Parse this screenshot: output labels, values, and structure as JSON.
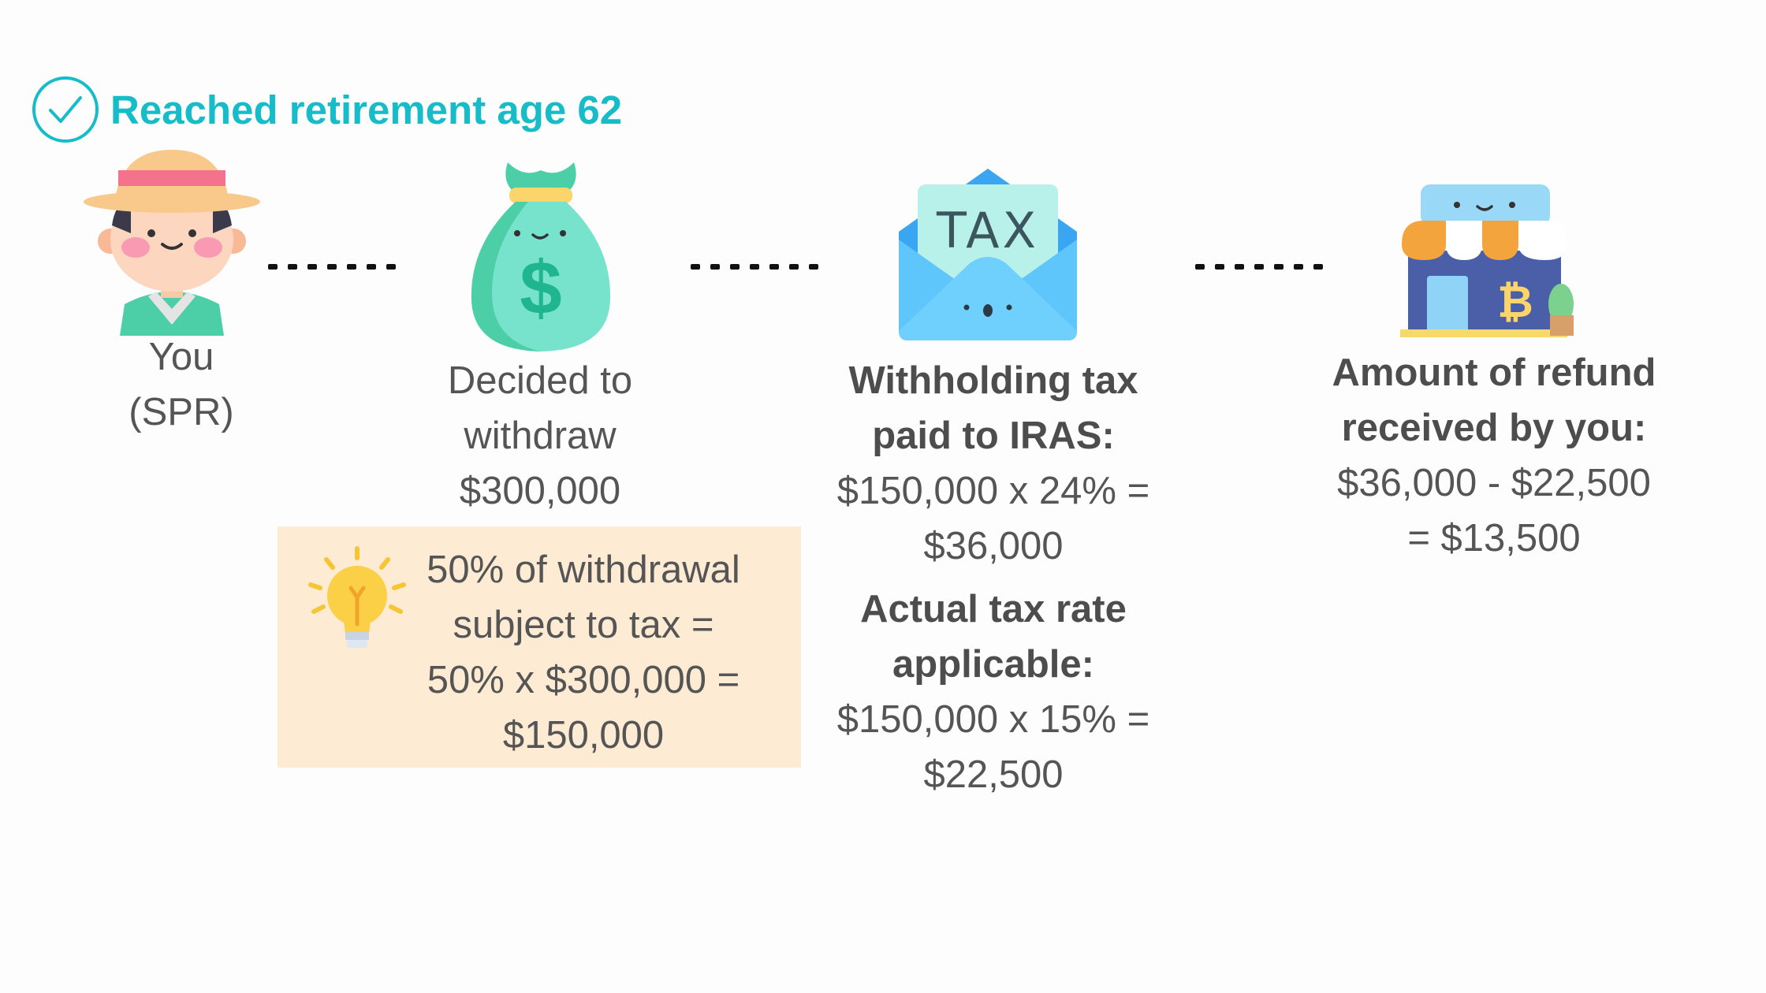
{
  "header": {
    "title": "Reached retirement age 62",
    "icon": "check-circle-icon"
  },
  "steps": [
    {
      "icon": "person-with-hat-icon",
      "line1": "You",
      "line2": "(SPR)"
    },
    {
      "icon": "money-bag-icon",
      "line1": "Decided to",
      "line2": "withdraw",
      "line3": "$300,000"
    },
    {
      "icon": "tax-envelope-icon",
      "heading1": "Withholding tax",
      "heading2": "paid to IRAS:",
      "calc1": "$150,000 x 24% =",
      "calc2": "$36,000",
      "heading3": "Actual tax rate",
      "heading4": "applicable:",
      "calc3": "$150,000 x 15% =",
      "calc4": "$22,500"
    },
    {
      "icon": "shop-icon",
      "heading1": "Amount of refund",
      "heading2": "received by you:",
      "calc1": "$36,000 - $22,500",
      "calc2": "= $13,500"
    }
  ],
  "tip": {
    "icon": "lightbulb-icon",
    "line1": "50% of withdrawal",
    "line2": "subject to tax =",
    "line3": "50% x $300,000 =",
    "line4": "$150,000"
  },
  "colors": {
    "accent": "#16bcc7",
    "tip_background": "#fdebd3",
    "text": "#555555"
  }
}
